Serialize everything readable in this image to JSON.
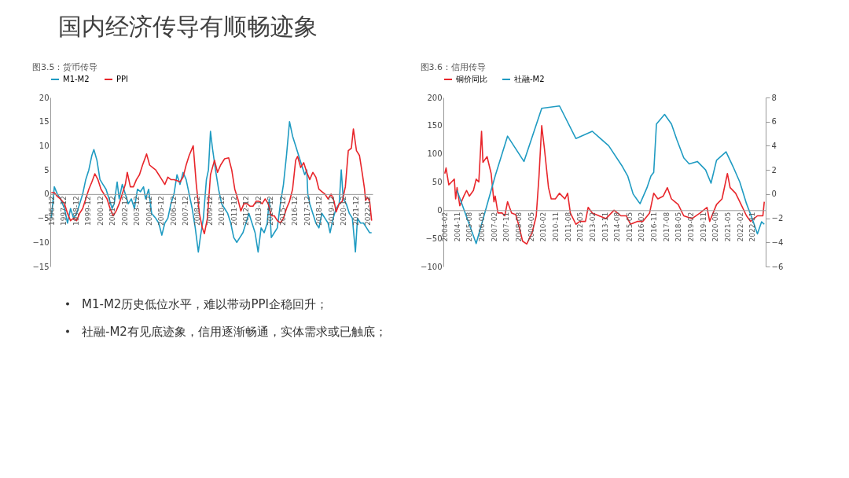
{
  "chart_data": [
    {
      "type": "other",
      "title": "国内经济传导有顺畅迹象",
      "annotations": [
        "M1-M2历史低位水平，难以带动PPI企稳回升；",
        "社融-M2有见底迹象，信用逐渐畅通，实体需求或已触底；"
      ]
    },
    {
      "type": "line",
      "title": "图3.5：货币传导",
      "legend": "top",
      "xlim": [
        "1996-11",
        "2023-05"
      ],
      "xticks": [
        "1996-12",
        "1997-12",
        "1998-12",
        "1999-12",
        "2000-12",
        "2001-12",
        "2002-12",
        "2003-12",
        "2004-12",
        "2005-12",
        "2006-12",
        "2007-12",
        "2008-12",
        "2009-12",
        "2010-12",
        "2011-12",
        "2012-12",
        "2013-12",
        "2014-12",
        "2015-12",
        "2016-12",
        "2017-12",
        "2018-12",
        "2019-12",
        "2020-12",
        "2021-12",
        "2022-12"
      ],
      "ylim": [
        -15,
        20
      ],
      "yticks": [
        -15,
        -10,
        -5,
        0,
        5,
        10,
        15,
        20
      ],
      "series": [
        {
          "name": "M1-M2",
          "color": "#1f9bc2",
          "x": [
            "1996-12",
            "1997-03",
            "1997-06",
            "1997-09",
            "1998-01",
            "1998-04",
            "1998-07",
            "1998-10",
            "1999-01",
            "1999-04",
            "1999-07",
            "1999-10",
            "2000-01",
            "2000-04",
            "2000-06",
            "2000-09",
            "2000-12",
            "2001-03",
            "2001-06",
            "2001-09",
            "2001-12",
            "2002-02",
            "2002-05",
            "2002-07",
            "2002-10",
            "2003-01",
            "2003-04",
            "2003-07",
            "2003-10",
            "2004-01",
            "2004-04",
            "2004-07",
            "2004-09",
            "2004-12",
            "2005-03",
            "2005-07",
            "2005-10",
            "2006-01",
            "2006-04",
            "2006-07",
            "2006-10",
            "2007-01",
            "2007-04",
            "2007-07",
            "2007-10",
            "2008-01",
            "2008-04",
            "2008-07",
            "2008-10",
            "2009-01",
            "2009-03",
            "2009-06",
            "2009-09",
            "2009-11",
            "2010-01",
            "2010-03",
            "2010-06",
            "2010-09",
            "2010-12",
            "2011-03",
            "2011-06",
            "2011-09",
            "2011-12",
            "2012-03",
            "2012-06",
            "2012-09",
            "2012-12",
            "2013-03",
            "2013-06",
            "2013-09",
            "2013-12",
            "2014-03",
            "2014-06",
            "2014-09",
            "2014-11",
            "2015-01",
            "2015-04",
            "2015-07",
            "2015-10",
            "2016-01",
            "2016-04",
            "2016-07",
            "2016-10",
            "2017-01",
            "2017-04",
            "2017-07",
            "2017-10",
            "2017-12",
            "2018-01",
            "2018-03",
            "2018-06",
            "2018-09",
            "2018-12",
            "2019-03",
            "2019-06",
            "2019-09",
            "2019-11",
            "2020-02",
            "2020-05",
            "2020-08",
            "2020-10",
            "2020-12",
            "2021-03",
            "2021-06",
            "2021-09",
            "2021-12",
            "2022-02",
            "2022-05",
            "2022-08",
            "2022-11",
            "2023-02",
            "2023-04"
          ],
          "values": [
            -5,
            1.5,
            0,
            -1,
            -3,
            -6,
            -3,
            -5,
            -4,
            -2,
            0,
            3,
            5,
            8,
            9.2,
            7,
            3,
            2,
            1,
            -1,
            -3,
            -2,
            2.5,
            -1,
            2,
            0,
            -2,
            -1,
            -3,
            1,
            0.5,
            1.5,
            -1,
            1,
            -4,
            -5,
            -6,
            -8.5,
            -6,
            -5,
            -2,
            0,
            4,
            2,
            4.5,
            3,
            0,
            -3,
            -7,
            -12,
            -9,
            -5,
            3,
            5,
            13,
            9.5,
            5,
            1,
            -2,
            -3,
            -4,
            -6,
            -9,
            -10,
            -9,
            -8,
            -6,
            -4,
            -6,
            -8,
            -12,
            -7,
            -8,
            -6,
            -1,
            -9,
            -8,
            -7,
            -2,
            2,
            8,
            15,
            12,
            10,
            8,
            6,
            4,
            5,
            0,
            -2,
            -4,
            -6,
            -7,
            -4,
            -5,
            -6,
            -8,
            -5,
            -3,
            -2,
            5,
            -1,
            -2,
            -4,
            -5,
            -12,
            -5,
            -6,
            -6,
            -7,
            -8,
            -8
          ]
        },
        {
          "name": "PPI",
          "color": "#e8262b",
          "x": [
            "1996-12",
            "1997-03",
            "1997-06",
            "1997-09",
            "1998-01",
            "1998-04",
            "1998-07",
            "1998-10",
            "1999-01",
            "1999-04",
            "1999-07",
            "1999-10",
            "2000-01",
            "2000-04",
            "2000-07",
            "2000-10",
            "2001-01",
            "2001-04",
            "2001-07",
            "2001-10",
            "2002-01",
            "2002-04",
            "2002-07",
            "2002-10",
            "2003-01",
            "2003-03",
            "2003-06",
            "2003-09",
            "2003-12",
            "2004-03",
            "2004-06",
            "2004-10",
            "2005-01",
            "2005-04",
            "2005-07",
            "2005-10",
            "2006-01",
            "2006-04",
            "2006-07",
            "2006-10",
            "2007-01",
            "2007-04",
            "2007-07",
            "2007-10",
            "2008-01",
            "2008-04",
            "2008-08",
            "2008-11",
            "2009-02",
            "2009-05",
            "2009-07",
            "2009-10",
            "2010-01",
            "2010-05",
            "2010-08",
            "2010-11",
            "2011-03",
            "2011-07",
            "2011-10",
            "2012-01",
            "2012-04",
            "2012-07",
            "2012-10",
            "2013-01",
            "2013-04",
            "2013-07",
            "2013-10",
            "2014-01",
            "2014-04",
            "2014-07",
            "2014-10",
            "2015-01",
            "2015-04",
            "2015-07",
            "2015-10",
            "2016-01",
            "2016-04",
            "2016-07",
            "2016-10",
            "2017-01",
            "2017-03",
            "2017-06",
            "2017-09",
            "2017-12",
            "2018-03",
            "2018-06",
            "2018-09",
            "2018-12",
            "2019-03",
            "2019-06",
            "2019-09",
            "2019-12",
            "2020-03",
            "2020-05",
            "2020-08",
            "2020-11",
            "2021-02",
            "2021-05",
            "2021-08",
            "2021-10",
            "2022-01",
            "2022-04",
            "2022-07",
            "2022-09",
            "2022-10",
            "2022-12",
            "2023-02",
            "2023-04"
          ],
          "values": [
            0.3,
            0.3,
            -0.5,
            -1,
            -2,
            -4,
            -5.5,
            -5,
            -5.5,
            -4,
            -3,
            -1,
            1,
            2.5,
            4.2,
            3,
            1,
            0,
            -1,
            -3,
            -4.5,
            -3.5,
            -2,
            0,
            2,
            4.5,
            1.5,
            1.5,
            3,
            4,
            6,
            8.3,
            6,
            5.5,
            5,
            4,
            3,
            2,
            3.5,
            3,
            3,
            2.8,
            2.5,
            3.5,
            6,
            8,
            10,
            2,
            -4,
            -7,
            -8.2,
            -5,
            4,
            7,
            4.5,
            6,
            7.3,
            7.5,
            5,
            1,
            -1,
            -3.5,
            -2,
            -2,
            -2.5,
            -2.5,
            -1.5,
            -1.5,
            -2,
            -1,
            -2,
            -4.5,
            -4.5,
            -5.5,
            -6,
            -5,
            -3,
            -1.5,
            1,
            7,
            7.8,
            5.5,
            6.5,
            4.5,
            3,
            4.5,
            3.5,
            1,
            0.5,
            0,
            -1,
            0,
            -1.5,
            -3.7,
            -2,
            -1.5,
            1.5,
            9,
            9.5,
            13.5,
            9,
            8,
            4,
            1,
            -1.3,
            -0.7,
            -1.5,
            -5.5
          ]
        }
      ]
    },
    {
      "type": "line",
      "title": "图3.6：信用传导",
      "legend": "top",
      "xlim": [
        "2004-01",
        "2023-09"
      ],
      "xticks": [
        "2004-02",
        "2004-11",
        "2005-08",
        "2006-05",
        "2007-02",
        "2007-11",
        "2008-08",
        "2009-05",
        "2010-02",
        "2010-11",
        "2011-08",
        "2012-05",
        "2013-02",
        "2013-11",
        "2014-08",
        "2015-05",
        "2016-02",
        "2016-11",
        "2017-08",
        "2018-05",
        "2019-02",
        "2019-11",
        "2020-08",
        "2021-05",
        "2022-02",
        "2022-11"
      ],
      "ylim": [
        -100,
        200
      ],
      "yticks": [
        -100,
        -50,
        0,
        50,
        100,
        150,
        200
      ],
      "y2lim": [
        -6,
        8
      ],
      "y2ticks": [
        -6,
        -4,
        -2,
        0,
        2,
        4,
        6,
        8
      ],
      "series": [
        {
          "name": "铜价同比",
          "color": "#e8262b",
          "x": [
            "2004-02",
            "2004-03",
            "2004-05",
            "2004-07",
            "2004-09",
            "2004-10",
            "2004-11",
            "2005-01",
            "2005-04",
            "2005-06",
            "2005-08",
            "2005-11",
            "2006-01",
            "2006-03",
            "2006-05",
            "2006-06",
            "2006-09",
            "2006-12",
            "2007-02",
            "2007-03",
            "2007-05",
            "2007-08",
            "2007-10",
            "2007-12",
            "2008-03",
            "2008-06",
            "2008-08",
            "2008-11",
            "2009-02",
            "2009-06",
            "2009-09",
            "2009-11",
            "2010-01",
            "2010-03",
            "2010-06",
            "2010-08",
            "2010-11",
            "2011-02",
            "2011-06",
            "2011-08",
            "2011-10",
            "2012-02",
            "2012-05",
            "2012-09",
            "2012-11",
            "2013-02",
            "2013-07",
            "2013-12",
            "2014-06",
            "2014-11",
            "2015-03",
            "2015-06",
            "2015-11",
            "2016-03",
            "2016-08",
            "2016-11",
            "2017-02",
            "2017-06",
            "2017-09",
            "2017-12",
            "2018-05",
            "2018-09",
            "2019-03",
            "2019-09",
            "2020-02",
            "2020-04",
            "2020-09",
            "2021-01",
            "2021-05",
            "2021-07",
            "2021-11",
            "2022-02",
            "2022-07",
            "2022-10",
            "2023-03",
            "2023-07",
            "2023-08"
          ],
          "values": [
            65,
            75,
            45,
            50,
            55,
            20,
            40,
            8,
            25,
            35,
            25,
            35,
            55,
            50,
            140,
            85,
            95,
            65,
            15,
            25,
            -5,
            -5,
            -10,
            15,
            -5,
            -8,
            -25,
            -55,
            -60,
            -40,
            -10,
            60,
            150,
            110,
            40,
            20,
            20,
            30,
            20,
            30,
            -5,
            -25,
            -20,
            -20,
            5,
            -5,
            -10,
            -15,
            0,
            -10,
            -10,
            -25,
            -20,
            -20,
            -5,
            30,
            20,
            25,
            40,
            20,
            10,
            -10,
            -15,
            -5,
            5,
            -20,
            10,
            20,
            65,
            40,
            30,
            15,
            -10,
            -20,
            -10,
            -10,
            15
          ]
        },
        {
          "name": "社融-M2",
          "color": "#1f9bc2",
          "axis": "y2",
          "x": [
            "2004-11",
            "2006-01",
            "2007-03",
            "2007-12",
            "2008-12",
            "2010-01",
            "2011-02",
            "2012-02",
            "2013-02",
            "2014-02",
            "2014-12",
            "2015-04",
            "2015-08",
            "2016-01",
            "2016-06",
            "2016-09",
            "2016-11",
            "2017-01",
            "2017-07",
            "2017-12",
            "2018-04",
            "2018-09",
            "2019-01",
            "2019-07",
            "2020-01",
            "2020-05",
            "2020-09",
            "2021-04",
            "2021-09",
            "2022-02",
            "2022-07",
            "2022-11",
            "2023-03",
            "2023-06",
            "2023-08"
          ],
          "values": [
            0.3,
            -4.1,
            1.5,
            4.8,
            2.7,
            7.1,
            7.3,
            4.6,
            5.2,
            4.0,
            2.3,
            1.5,
            0,
            -0.8,
            0.5,
            1.5,
            1.8,
            5.8,
            6.6,
            5.8,
            4.5,
            3.0,
            2.5,
            2.7,
            2.0,
            0.9,
            2.8,
            3.5,
            2.3,
            1.0,
            -0.8,
            -2.0,
            -3.3,
            -2.3,
            -2.5
          ]
        }
      ]
    }
  ]
}
